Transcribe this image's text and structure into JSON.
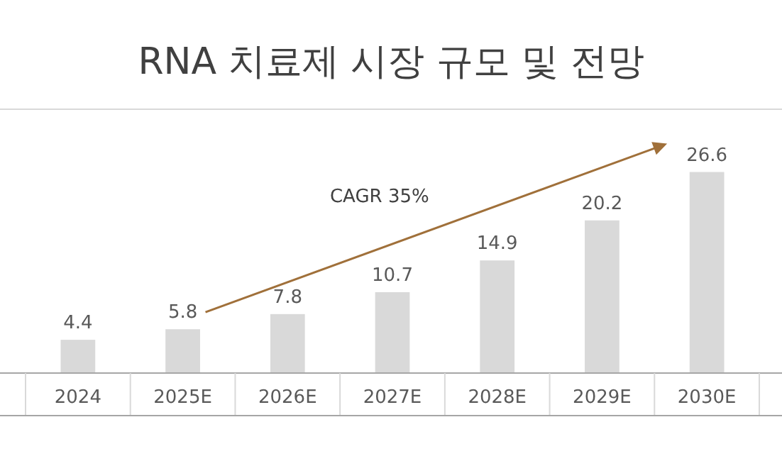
{
  "chart_data": {
    "type": "bar",
    "title": "RNA 치료제 시장 규모 및 전망",
    "categories": [
      "2024",
      "2025E",
      "2026E",
      "2027E",
      "2028E",
      "2029E",
      "2030E"
    ],
    "values": [
      4.4,
      5.8,
      7.8,
      10.7,
      14.9,
      20.2,
      26.6
    ],
    "color": "#d9d9d9",
    "data_labels": true,
    "annotations": [
      "CAGR 35%"
    ]
  }
}
